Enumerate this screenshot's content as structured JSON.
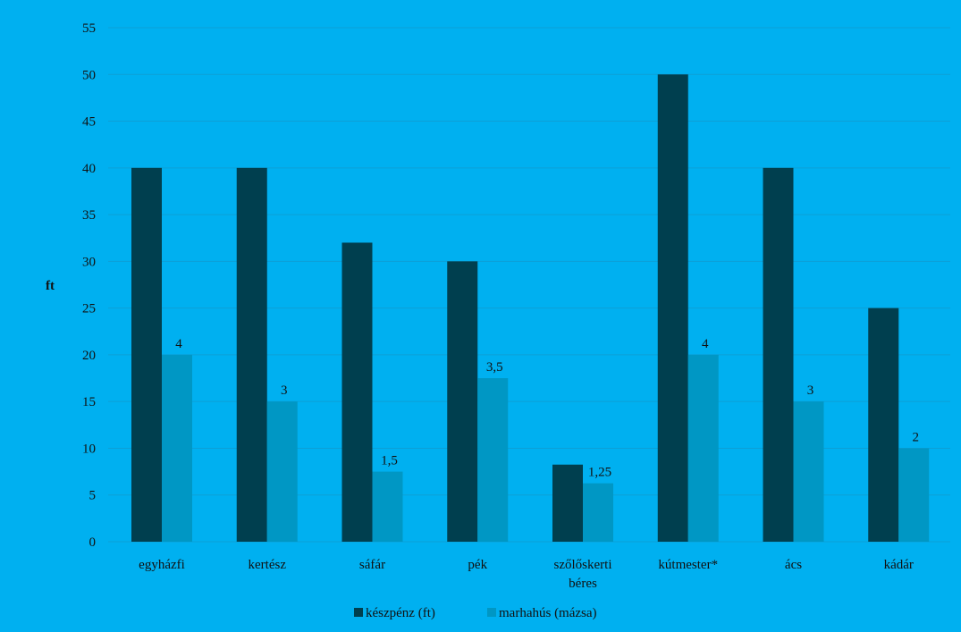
{
  "chart_data": {
    "type": "bar",
    "title": "",
    "xlabel": "",
    "ylabel": "ft",
    "ylim": [
      0,
      55
    ],
    "ytick_step": 5,
    "grid": true,
    "legend_position": "bottom",
    "categories": [
      "egyházfi",
      "kertész",
      "sáfár",
      "pék",
      "szőlőskerti béres",
      "kútmester*",
      "ács",
      "kádár"
    ],
    "series": [
      {
        "name": "készpénz (ft)",
        "color": "#003f4f",
        "values": [
          40,
          40,
          32,
          30,
          8.25,
          50,
          40,
          25
        ],
        "data_labels": []
      },
      {
        "name": "marhahús (mázsa)",
        "color": "#0097c4",
        "values": [
          20,
          15,
          7.5,
          17.5,
          6.25,
          20,
          15,
          10
        ],
        "data_labels": [
          "4",
          "3",
          "1,5",
          "3,5",
          "1,25",
          "4",
          "3",
          "2"
        ]
      }
    ],
    "gridline_color": "#0d9fd6"
  }
}
